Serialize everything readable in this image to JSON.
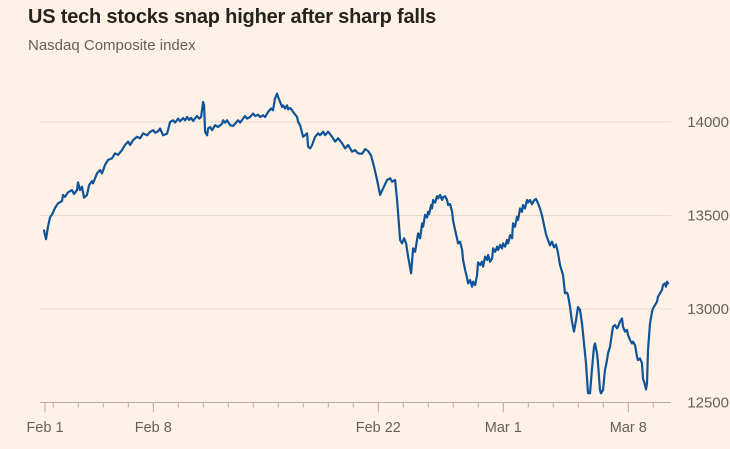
{
  "header": {
    "title": "US tech stocks snap higher after sharp falls",
    "subtitle": "Nasdaq Composite index"
  },
  "colors": {
    "background": "#FFF1E5",
    "line": "#0F5499",
    "grid": "#E9DCCC",
    "axis": "#B9AEA1",
    "title_text": "#26231F",
    "muted_text": "#66605C"
  },
  "chart_data": {
    "type": "line",
    "title": "US tech stocks snap higher after sharp falls",
    "subtitle": "Nasdaq Composite index",
    "legend": false,
    "grid": true,
    "x_axis": {
      "unit": "trading days, Feb 1 - Mar 9 2021 (t = trading days since Feb 1 open)",
      "labels": [
        {
          "text": "Feb 1",
          "day_index": 0
        },
        {
          "text": "Feb 8",
          "day_index": 5
        },
        {
          "text": "Feb 22",
          "day_index": 14
        },
        {
          "text": "Mar 1",
          "day_index": 19
        },
        {
          "text": "Mar 8",
          "day_index": 24
        }
      ],
      "minor_ticks_every_trading_day": true,
      "trading_day_count": 26
    },
    "y_axis": {
      "ticks": [
        12500,
        13000,
        13500,
        14000
      ],
      "range": [
        12500,
        14000
      ],
      "side": "right"
    },
    "series": [
      {
        "name": "Nasdaq Composite index",
        "points": [
          [
            0.63,
            13420
          ],
          [
            0.71,
            13373
          ],
          [
            0.79,
            13440
          ],
          [
            0.87,
            13490
          ],
          [
            0.95,
            13505
          ],
          [
            1.07,
            13540
          ],
          [
            1.19,
            13565
          ],
          [
            1.35,
            13577
          ],
          [
            1.39,
            13610
          ],
          [
            1.47,
            13600
          ],
          [
            1.59,
            13624
          ],
          [
            1.75,
            13636
          ],
          [
            1.83,
            13615
          ],
          [
            1.95,
            13636
          ],
          [
            1.99,
            13677
          ],
          [
            2.07,
            13636
          ],
          [
            2.15,
            13654
          ],
          [
            2.23,
            13595
          ],
          [
            2.35,
            13610
          ],
          [
            2.43,
            13663
          ],
          [
            2.55,
            13684
          ],
          [
            2.59,
            13672
          ],
          [
            2.75,
            13725
          ],
          [
            2.87,
            13743
          ],
          [
            2.95,
            13725
          ],
          [
            3.07,
            13770
          ],
          [
            3.19,
            13797
          ],
          [
            3.35,
            13806
          ],
          [
            3.47,
            13832
          ],
          [
            3.59,
            13824
          ],
          [
            3.75,
            13850
          ],
          [
            3.87,
            13877
          ],
          [
            3.99,
            13895
          ],
          [
            4.07,
            13877
          ],
          [
            4.19,
            13904
          ],
          [
            4.35,
            13921
          ],
          [
            4.47,
            13913
          ],
          [
            4.59,
            13939
          ],
          [
            4.75,
            13929
          ],
          [
            4.87,
            13947
          ],
          [
            4.99,
            13956
          ],
          [
            5.07,
            13943
          ],
          [
            5.19,
            13950
          ],
          [
            5.27,
            13965
          ],
          [
            5.39,
            13929
          ],
          [
            5.55,
            13938
          ],
          [
            5.67,
            14000
          ],
          [
            5.79,
            14009
          ],
          [
            5.87,
            13997
          ],
          [
            5.99,
            14018
          ],
          [
            6.07,
            14004
          ],
          [
            6.19,
            14021
          ],
          [
            6.27,
            14009
          ],
          [
            6.35,
            14027
          ],
          [
            6.43,
            14012
          ],
          [
            6.51,
            14022
          ],
          [
            6.59,
            14006
          ],
          [
            6.67,
            14020
          ],
          [
            6.75,
            14032
          ],
          [
            6.83,
            14018
          ],
          [
            6.91,
            14027
          ],
          [
            6.99,
            14107
          ],
          [
            7.03,
            14089
          ],
          [
            7.07,
            13947
          ],
          [
            7.15,
            13929
          ],
          [
            7.19,
            13965
          ],
          [
            7.27,
            13973
          ],
          [
            7.35,
            13956
          ],
          [
            7.47,
            13983
          ],
          [
            7.59,
            13973
          ],
          [
            7.75,
            13991
          ],
          [
            7.79,
            14009
          ],
          [
            7.87,
            13997
          ],
          [
            7.95,
            14009
          ],
          [
            8.07,
            13983
          ],
          [
            8.19,
            13979
          ],
          [
            8.27,
            13991
          ],
          [
            8.39,
            14009
          ],
          [
            8.47,
            13997
          ],
          [
            8.59,
            14018
          ],
          [
            8.67,
            14032
          ],
          [
            8.75,
            14018
          ],
          [
            8.87,
            14027
          ],
          [
            8.99,
            14045
          ],
          [
            9.07,
            14032
          ],
          [
            9.19,
            14039
          ],
          [
            9.27,
            14027
          ],
          [
            9.39,
            14036
          ],
          [
            9.47,
            14027
          ],
          [
            9.59,
            14054
          ],
          [
            9.71,
            14072
          ],
          [
            9.79,
            14063
          ],
          [
            9.87,
            14125
          ],
          [
            9.95,
            14152
          ],
          [
            9.99,
            14134
          ],
          [
            10.07,
            14107
          ],
          [
            10.15,
            14080
          ],
          [
            10.19,
            14089
          ],
          [
            10.27,
            14072
          ],
          [
            10.35,
            14089
          ],
          [
            10.39,
            14068
          ],
          [
            10.47,
            14075
          ],
          [
            10.55,
            14063
          ],
          [
            10.59,
            14054
          ],
          [
            10.75,
            14027
          ],
          [
            10.79,
            14000
          ],
          [
            10.87,
            13983
          ],
          [
            10.99,
            13921
          ],
          [
            11.15,
            13939
          ],
          [
            11.19,
            13868
          ],
          [
            11.27,
            13859
          ],
          [
            11.35,
            13877
          ],
          [
            11.47,
            13921
          ],
          [
            11.59,
            13939
          ],
          [
            11.67,
            13930
          ],
          [
            11.79,
            13948
          ],
          [
            11.87,
            13930
          ],
          [
            11.99,
            13948
          ],
          [
            12.15,
            13921
          ],
          [
            12.27,
            13895
          ],
          [
            12.39,
            13913
          ],
          [
            12.55,
            13886
          ],
          [
            12.67,
            13859
          ],
          [
            12.79,
            13877
          ],
          [
            12.95,
            13841
          ],
          [
            13.07,
            13850
          ],
          [
            13.19,
            13832
          ],
          [
            13.35,
            13830
          ],
          [
            13.47,
            13855
          ],
          [
            13.59,
            13845
          ],
          [
            13.71,
            13820
          ],
          [
            13.83,
            13760
          ],
          [
            13.95,
            13690
          ],
          [
            14.07,
            13610
          ],
          [
            14.19,
            13645
          ],
          [
            14.35,
            13690
          ],
          [
            14.47,
            13699
          ],
          [
            14.55,
            13681
          ],
          [
            14.67,
            13690
          ],
          [
            14.75,
            13583
          ],
          [
            14.87,
            13369
          ],
          [
            14.95,
            13351
          ],
          [
            15.03,
            13378
          ],
          [
            15.11,
            13351
          ],
          [
            15.19,
            13280
          ],
          [
            15.31,
            13191
          ],
          [
            15.39,
            13324
          ],
          [
            15.47,
            13306
          ],
          [
            15.59,
            13405
          ],
          [
            15.67,
            13378
          ],
          [
            15.75,
            13458
          ],
          [
            15.79,
            13440
          ],
          [
            15.87,
            13503
          ],
          [
            15.95,
            13490
          ],
          [
            15.99,
            13520
          ],
          [
            16.03,
            13508
          ],
          [
            16.11,
            13556
          ],
          [
            16.15,
            13538
          ],
          [
            16.19,
            13583
          ],
          [
            16.27,
            13569
          ],
          [
            16.35,
            13604
          ],
          [
            16.39,
            13592
          ],
          [
            16.47,
            13610
          ],
          [
            16.55,
            13583
          ],
          [
            16.59,
            13597
          ],
          [
            16.67,
            13604
          ],
          [
            16.75,
            13583
          ],
          [
            16.79,
            13556
          ],
          [
            16.87,
            13561
          ],
          [
            16.95,
            13520
          ],
          [
            16.99,
            13476
          ],
          [
            17.07,
            13422
          ],
          [
            17.15,
            13378
          ],
          [
            17.19,
            13351
          ],
          [
            17.27,
            13360
          ],
          [
            17.35,
            13316
          ],
          [
            17.39,
            13262
          ],
          [
            17.47,
            13209
          ],
          [
            17.55,
            13164
          ],
          [
            17.59,
            13137
          ],
          [
            17.67,
            13155
          ],
          [
            17.75,
            13119
          ],
          [
            17.79,
            13146
          ],
          [
            17.87,
            13128
          ],
          [
            17.95,
            13182
          ],
          [
            17.99,
            13250
          ],
          [
            18.07,
            13235
          ],
          [
            18.15,
            13253
          ],
          [
            18.19,
            13226
          ],
          [
            18.27,
            13280
          ],
          [
            18.35,
            13262
          ],
          [
            18.39,
            13289
          ],
          [
            18.47,
            13253
          ],
          [
            18.55,
            13271
          ],
          [
            18.59,
            13324
          ],
          [
            18.67,
            13306
          ],
          [
            18.75,
            13333
          ],
          [
            18.79,
            13316
          ],
          [
            18.87,
            13342
          ],
          [
            18.95,
            13324
          ],
          [
            18.99,
            13351
          ],
          [
            19.07,
            13333
          ],
          [
            19.15,
            13369
          ],
          [
            19.19,
            13351
          ],
          [
            19.27,
            13395
          ],
          [
            19.35,
            13378
          ],
          [
            19.39,
            13458
          ],
          [
            19.47,
            13440
          ],
          [
            19.55,
            13493
          ],
          [
            19.59,
            13476
          ],
          [
            19.67,
            13538
          ],
          [
            19.75,
            13520
          ],
          [
            19.79,
            13556
          ],
          [
            19.87,
            13538
          ],
          [
            19.95,
            13583
          ],
          [
            19.99,
            13569
          ],
          [
            20.07,
            13583
          ],
          [
            20.15,
            13560
          ],
          [
            20.23,
            13580
          ],
          [
            20.31,
            13589
          ],
          [
            20.39,
            13565
          ],
          [
            20.47,
            13538
          ],
          [
            20.55,
            13500
          ],
          [
            20.63,
            13449
          ],
          [
            20.71,
            13400
          ],
          [
            20.79,
            13369
          ],
          [
            20.87,
            13340
          ],
          [
            20.95,
            13360
          ],
          [
            21.03,
            13330
          ],
          [
            21.11,
            13345
          ],
          [
            21.19,
            13300
          ],
          [
            21.27,
            13235
          ],
          [
            21.39,
            13182
          ],
          [
            21.47,
            13084
          ],
          [
            21.55,
            13087
          ],
          [
            21.59,
            13075
          ],
          [
            21.67,
            13012
          ],
          [
            21.75,
            12932
          ],
          [
            21.83,
            12879
          ],
          [
            21.91,
            12940
          ],
          [
            21.99,
            13010
          ],
          [
            22.07,
            12995
          ],
          [
            22.15,
            12923
          ],
          [
            22.23,
            12816
          ],
          [
            22.31,
            12709
          ],
          [
            22.39,
            12550
          ],
          [
            22.47,
            12549
          ],
          [
            22.55,
            12680
          ],
          [
            22.63,
            12798
          ],
          [
            22.67,
            12816
          ],
          [
            22.75,
            12763
          ],
          [
            22.79,
            12709
          ],
          [
            22.87,
            12567
          ],
          [
            22.91,
            12549
          ],
          [
            22.99,
            12567
          ],
          [
            23.07,
            12674
          ],
          [
            23.15,
            12727
          ],
          [
            23.19,
            12763
          ],
          [
            23.27,
            12798
          ],
          [
            23.35,
            12870
          ],
          [
            23.39,
            12905
          ],
          [
            23.47,
            12914
          ],
          [
            23.55,
            12897
          ],
          [
            23.59,
            12905
          ],
          [
            23.67,
            12932
          ],
          [
            23.75,
            12950
          ],
          [
            23.79,
            12905
          ],
          [
            23.87,
            12879
          ],
          [
            23.95,
            12888
          ],
          [
            23.99,
            12861
          ],
          [
            24.07,
            12834
          ],
          [
            24.15,
            12816
          ],
          [
            24.19,
            12825
          ],
          [
            24.27,
            12807
          ],
          [
            24.35,
            12745
          ],
          [
            24.39,
            12727
          ],
          [
            24.47,
            12736
          ],
          [
            24.55,
            12709
          ],
          [
            24.59,
            12629
          ],
          [
            24.67,
            12593
          ],
          [
            24.71,
            12570
          ],
          [
            24.75,
            12602
          ],
          [
            24.79,
            12781
          ],
          [
            24.87,
            12923
          ],
          [
            24.95,
            12985
          ],
          [
            24.99,
            13003
          ],
          [
            25.07,
            13021
          ],
          [
            25.15,
            13039
          ],
          [
            25.19,
            13066
          ],
          [
            25.27,
            13084
          ],
          [
            25.35,
            13102
          ],
          [
            25.39,
            13128
          ],
          [
            25.47,
            13137
          ],
          [
            25.51,
            13119
          ],
          [
            25.55,
            13146
          ],
          [
            25.59,
            13137
          ]
        ]
      }
    ]
  }
}
